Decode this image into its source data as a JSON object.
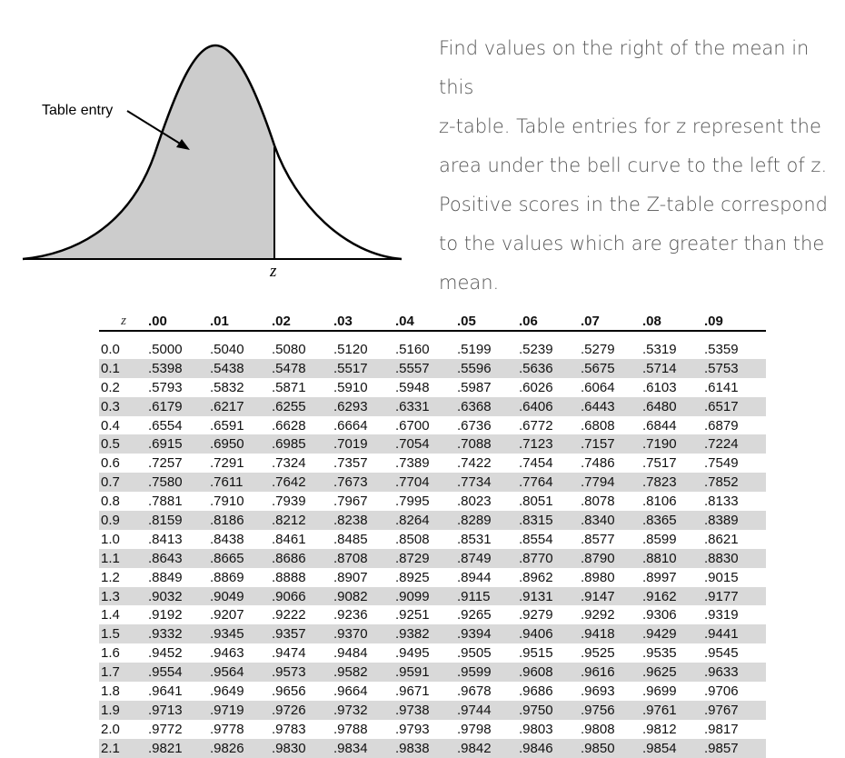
{
  "figure": {
    "annotation": "Table entry",
    "axis_label": "z"
  },
  "description": {
    "line1": "Find values on the right of the mean in this",
    "line2": "z-table. Table entries for z represent the",
    "line3": "area under the bell curve to the left of z.",
    "line4": "Positive scores in the Z-table correspond",
    "line5": "to  the values which are greater than the",
    "line6": "mean."
  },
  "table": {
    "corner": "z",
    "columns": [
      ".00",
      ".01",
      ".02",
      ".03",
      ".04",
      ".05",
      ".06",
      ".07",
      ".08",
      ".09"
    ],
    "rows": [
      {
        "z": "0.0",
        "values": [
          ".5000",
          ".5040",
          ".5080",
          ".5120",
          ".5160",
          ".5199",
          ".5239",
          ".5279",
          ".5319",
          ".5359"
        ]
      },
      {
        "z": "0.1",
        "values": [
          ".5398",
          ".5438",
          ".5478",
          ".5517",
          ".5557",
          ".5596",
          ".5636",
          ".5675",
          ".5714",
          ".5753"
        ]
      },
      {
        "z": "0.2",
        "values": [
          ".5793",
          ".5832",
          ".5871",
          ".5910",
          ".5948",
          ".5987",
          ".6026",
          ".6064",
          ".6103",
          ".6141"
        ]
      },
      {
        "z": "0.3",
        "values": [
          ".6179",
          ".6217",
          ".6255",
          ".6293",
          ".6331",
          ".6368",
          ".6406",
          ".6443",
          ".6480",
          ".6517"
        ]
      },
      {
        "z": "0.4",
        "values": [
          ".6554",
          ".6591",
          ".6628",
          ".6664",
          ".6700",
          ".6736",
          ".6772",
          ".6808",
          ".6844",
          ".6879"
        ]
      },
      {
        "z": "0.5",
        "values": [
          ".6915",
          ".6950",
          ".6985",
          ".7019",
          ".7054",
          ".7088",
          ".7123",
          ".7157",
          ".7190",
          ".7224"
        ]
      },
      {
        "z": "0.6",
        "values": [
          ".7257",
          ".7291",
          ".7324",
          ".7357",
          ".7389",
          ".7422",
          ".7454",
          ".7486",
          ".7517",
          ".7549"
        ]
      },
      {
        "z": "0.7",
        "values": [
          ".7580",
          ".7611",
          ".7642",
          ".7673",
          ".7704",
          ".7734",
          ".7764",
          ".7794",
          ".7823",
          ".7852"
        ]
      },
      {
        "z": "0.8",
        "values": [
          ".7881",
          ".7910",
          ".7939",
          ".7967",
          ".7995",
          ".8023",
          ".8051",
          ".8078",
          ".8106",
          ".8133"
        ]
      },
      {
        "z": "0.9",
        "values": [
          ".8159",
          ".8186",
          ".8212",
          ".8238",
          ".8264",
          ".8289",
          ".8315",
          ".8340",
          ".8365",
          ".8389"
        ]
      },
      {
        "z": "1.0",
        "values": [
          ".8413",
          ".8438",
          ".8461",
          ".8485",
          ".8508",
          ".8531",
          ".8554",
          ".8577",
          ".8599",
          ".8621"
        ]
      },
      {
        "z": "1.1",
        "values": [
          ".8643",
          ".8665",
          ".8686",
          ".8708",
          ".8729",
          ".8749",
          ".8770",
          ".8790",
          ".8810",
          ".8830"
        ]
      },
      {
        "z": "1.2",
        "values": [
          ".8849",
          ".8869",
          ".8888",
          ".8907",
          ".8925",
          ".8944",
          ".8962",
          ".8980",
          ".8997",
          ".9015"
        ]
      },
      {
        "z": "1.3",
        "values": [
          ".9032",
          ".9049",
          ".9066",
          ".9082",
          ".9099",
          ".9115",
          ".9131",
          ".9147",
          ".9162",
          ".9177"
        ]
      },
      {
        "z": "1.4",
        "values": [
          ".9192",
          ".9207",
          ".9222",
          ".9236",
          ".9251",
          ".9265",
          ".9279",
          ".9292",
          ".9306",
          ".9319"
        ]
      },
      {
        "z": "1.5",
        "values": [
          ".9332",
          ".9345",
          ".9357",
          ".9370",
          ".9382",
          ".9394",
          ".9406",
          ".9418",
          ".9429",
          ".9441"
        ]
      },
      {
        "z": "1.6",
        "values": [
          ".9452",
          ".9463",
          ".9474",
          ".9484",
          ".9495",
          ".9505",
          ".9515",
          ".9525",
          ".9535",
          ".9545"
        ]
      },
      {
        "z": "1.7",
        "values": [
          ".9554",
          ".9564",
          ".9573",
          ".9582",
          ".9591",
          ".9599",
          ".9608",
          ".9616",
          ".9625",
          ".9633"
        ]
      },
      {
        "z": "1.8",
        "values": [
          ".9641",
          ".9649",
          ".9656",
          ".9664",
          ".9671",
          ".9678",
          ".9686",
          ".9693",
          ".9699",
          ".9706"
        ]
      },
      {
        "z": "1.9",
        "values": [
          ".9713",
          ".9719",
          ".9726",
          ".9732",
          ".9738",
          ".9744",
          ".9750",
          ".9756",
          ".9761",
          ".9767"
        ]
      },
      {
        "z": "2.0",
        "values": [
          ".9772",
          ".9778",
          ".9783",
          ".9788",
          ".9793",
          ".9798",
          ".9803",
          ".9808",
          ".9812",
          ".9817"
        ]
      },
      {
        "z": "2.1",
        "values": [
          ".9821",
          ".9826",
          ".9830",
          ".9834",
          ".9838",
          ".9842",
          ".9846",
          ".9850",
          ".9854",
          ".9857"
        ]
      }
    ]
  }
}
